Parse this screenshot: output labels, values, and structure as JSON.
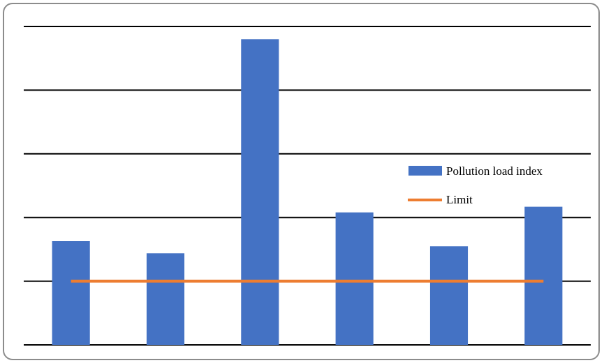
{
  "chart_data": {
    "type": "bar",
    "title": "",
    "xlabel": "",
    "ylabel": "",
    "categories": [
      "",
      "",
      "",
      "",
      "",
      ""
    ],
    "ylim": [
      0,
      5
    ],
    "grid": true,
    "legend": "right",
    "series": [
      {
        "name": "Pollution load index",
        "type": "bar",
        "color": "#4472C4",
        "values": [
          1.63,
          1.44,
          4.8,
          2.08,
          1.55,
          2.17
        ]
      },
      {
        "name": "Limit",
        "type": "line",
        "color": "#ED7D31",
        "values": [
          1,
          1,
          1,
          1,
          1,
          1
        ]
      }
    ]
  }
}
